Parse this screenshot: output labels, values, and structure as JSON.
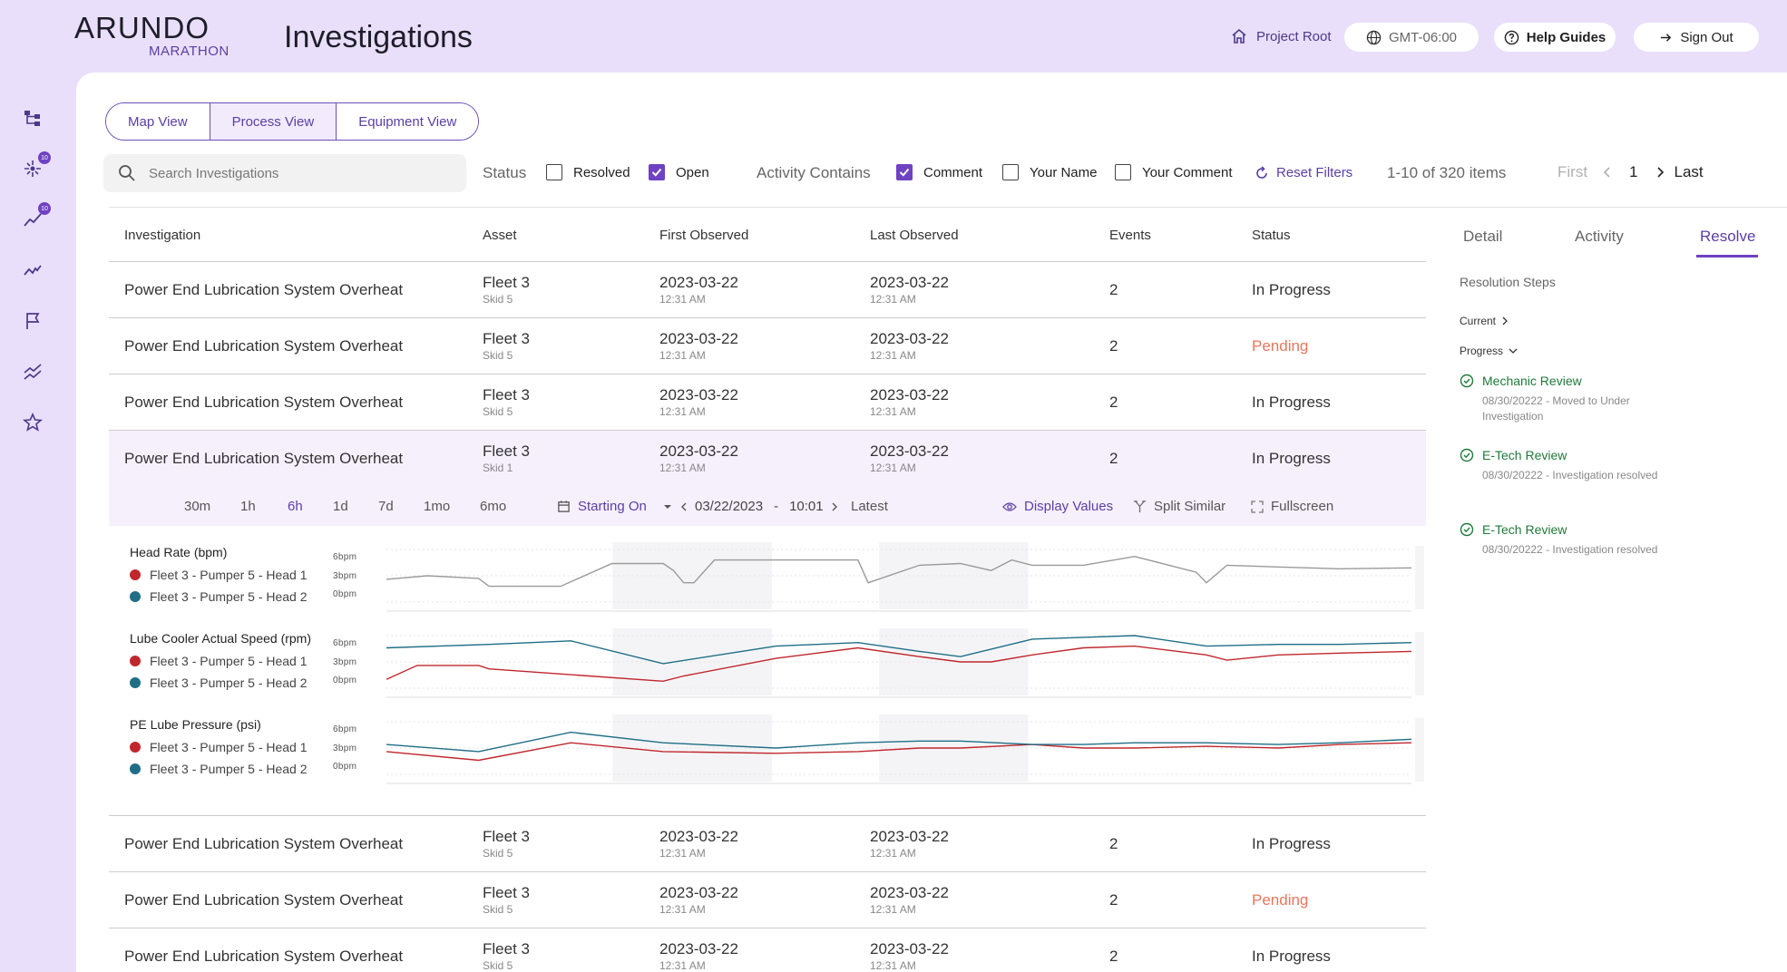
{
  "brand": {
    "name": "ARUNDO",
    "sub": "MARATHON"
  },
  "page_title": "Investigations",
  "header": {
    "project_root": "Project Root",
    "timezone": "GMT-06:00",
    "help": "Help Guides",
    "sign_out": "Sign Out"
  },
  "nav": [
    {
      "icon": "hierarchy-icon"
    },
    {
      "icon": "sparkle-icon",
      "badge": "10"
    },
    {
      "icon": "trend-up-icon",
      "badge": "10"
    },
    {
      "icon": "activity-icon"
    },
    {
      "icon": "flag-icon"
    },
    {
      "icon": "chart-lines-icon"
    },
    {
      "icon": "star-icon"
    }
  ],
  "views": [
    "Map View",
    "Process View",
    "Equipment View"
  ],
  "active_view": "Process View",
  "search": {
    "placeholder": "Search Investigations"
  },
  "filters": {
    "status_label": "Status",
    "resolved": "Resolved",
    "open": "Open",
    "activity_label": "Activity Contains",
    "comment": "Comment",
    "your_name": "Your Name",
    "your_comment": "Your Comment",
    "reset": "Reset Filters"
  },
  "pagination": {
    "count": "1-10 of 320 items",
    "first": "First",
    "page": "1",
    "last": "Last"
  },
  "columns": [
    "Investigation",
    "Asset",
    "First Observed",
    "Last Observed",
    "Events",
    "Status"
  ],
  "rows": [
    {
      "name": "Power End Lubrication System Overheat",
      "fleet": "Fleet 3",
      "skid": "Skid 5",
      "first_date": "2023-03-22",
      "first_time": "12:31 AM",
      "last_date": "2023-03-22",
      "last_time": "12:31 AM",
      "events": "2",
      "status": "In Progress"
    },
    {
      "name": "Power End Lubrication System Overheat",
      "fleet": "Fleet 3",
      "skid": "Skid 5",
      "first_date": "2023-03-22",
      "first_time": "12:31 AM",
      "last_date": "2023-03-22",
      "last_time": "12:31 AM",
      "events": "2",
      "status": "Pending"
    },
    {
      "name": "Power End Lubrication System Overheat",
      "fleet": "Fleet 3",
      "skid": "Skid 5",
      "first_date": "2023-03-22",
      "first_time": "12:31 AM",
      "last_date": "2023-03-22",
      "last_time": "12:31 AM",
      "events": "2",
      "status": "In Progress"
    },
    {
      "name": "Power End Lubrication System Overheat",
      "fleet": "Fleet 3",
      "skid": "Skid 1",
      "first_date": "2023-03-22",
      "first_time": "12:31 AM",
      "last_date": "2023-03-22",
      "last_time": "12:31 AM",
      "events": "2",
      "status": "In Progress"
    },
    {
      "name": "Power End Lubrication System Overheat",
      "fleet": "Fleet 3",
      "skid": "Skid 5",
      "first_date": "2023-03-22",
      "first_time": "12:31 AM",
      "last_date": "2023-03-22",
      "last_time": "12:31 AM",
      "events": "2",
      "status": "In Progress"
    },
    {
      "name": "Power End Lubrication System Overheat",
      "fleet": "Fleet 3",
      "skid": "Skid 5",
      "first_date": "2023-03-22",
      "first_time": "12:31 AM",
      "last_date": "2023-03-22",
      "last_time": "12:31 AM",
      "events": "2",
      "status": "Pending"
    },
    {
      "name": "Power End Lubrication System Overheat",
      "fleet": "Fleet 3",
      "skid": "Skid 5",
      "first_date": "2023-03-22",
      "first_time": "12:31 AM",
      "last_date": "2023-03-22",
      "last_time": "12:31 AM",
      "events": "2",
      "status": "In Progress"
    }
  ],
  "toolbar": {
    "ranges": [
      "30m",
      "1h",
      "6h",
      "1d",
      "7d",
      "1mo",
      "6mo"
    ],
    "active_range": "6h",
    "starting_on": "Starting On",
    "date": "03/22/2023",
    "sep": "-",
    "time": "10:01",
    "latest": "Latest",
    "display_values": "Display Values",
    "split_similar": "Split Similar",
    "fullscreen": "Fullscreen"
  },
  "status_colors": {
    "in_progress": "#333333",
    "pending": "#e8765d",
    "accent": "#6f42c1"
  },
  "series_colors": {
    "head1": "#c0272d",
    "head2": "#1f6e86"
  },
  "chart_data": [
    {
      "type": "line",
      "title": "Head Rate (bpm)",
      "y_ticks": [
        "6bpm",
        "3bpm",
        "0bpm"
      ],
      "ylim": [
        0,
        6
      ],
      "legend": [
        "Fleet 3 - Pumper 5 - Head 1",
        "Fleet 3 - Pumper 5 - Head 2"
      ],
      "series": [
        {
          "name": "",
          "x": [
            0,
            0.04,
            0.09,
            0.1,
            0.12,
            0.13,
            0.17,
            0.22,
            0.26,
            0.27,
            0.28,
            0.29,
            0.3,
            0.32,
            0.36,
            0.46,
            0.47,
            0.52,
            0.56,
            0.59,
            0.61,
            0.63,
            0.68,
            0.73,
            0.79,
            0.8,
            0.82,
            0.87,
            0.93,
            1
          ],
          "y": [
            2.6,
            3.0,
            2.7,
            1.8,
            1.8,
            1.8,
            1.8,
            4.4,
            4.4,
            4.4,
            3.6,
            2.2,
            2.2,
            4.8,
            4.8,
            4.8,
            2.2,
            4.2,
            4.4,
            3.6,
            4.8,
            4.2,
            4.2,
            5.2,
            3.4,
            2.2,
            4.2,
            4.0,
            3.8,
            3.9
          ]
        }
      ]
    },
    {
      "type": "line",
      "title": "Lube Cooler Actual Speed (rpm)",
      "y_ticks": [
        "6bpm",
        "3bpm",
        "0bpm"
      ],
      "ylim": [
        0,
        6
      ],
      "legend": [
        "Fleet 3 - Pumper 5 - Head 1",
        "Fleet 3 - Pumper 5 - Head 2"
      ],
      "series": [
        {
          "name": "Fleet 3 - Pumper 5 - Head 1",
          "x": [
            0,
            0.03,
            0.09,
            0.1,
            0.27,
            0.29,
            0.38,
            0.46,
            0.52,
            0.56,
            0.59,
            0.63,
            0.68,
            0.73,
            0.8,
            0.82,
            0.87,
            0.93,
            1
          ],
          "y": [
            1.0,
            2.6,
            2.6,
            2.2,
            0.8,
            1.4,
            3.4,
            4.6,
            3.6,
            3.0,
            3.0,
            3.8,
            4.6,
            4.8,
            3.8,
            3.2,
            3.8,
            4.0,
            4.2
          ]
        },
        {
          "name": "Fleet 3 - Pumper 5 - Head 2",
          "x": [
            0,
            0.1,
            0.18,
            0.27,
            0.38,
            0.46,
            0.52,
            0.56,
            0.63,
            0.68,
            0.73,
            0.8,
            0.87,
            0.93,
            1
          ],
          "y": [
            4.6,
            5.0,
            5.4,
            2.8,
            4.8,
            5.2,
            4.2,
            3.6,
            5.6,
            5.8,
            6.0,
            4.8,
            5.0,
            5.0,
            5.2
          ]
        }
      ]
    },
    {
      "type": "line",
      "title": "PE Lube Pressure (psi)",
      "y_ticks": [
        "6bpm",
        "3bpm",
        "0bpm"
      ],
      "ylim": [
        0,
        6
      ],
      "legend": [
        "Fleet 3 - Pumper 5 - Head 1",
        "Fleet 3 - Pumper 5 - Head 2"
      ],
      "series": [
        {
          "name": "Fleet 3 - Pumper 5 - Head 1",
          "x": [
            0,
            0.09,
            0.18,
            0.27,
            0.38,
            0.46,
            0.52,
            0.56,
            0.63,
            0.68,
            0.73,
            0.8,
            0.87,
            0.93,
            1
          ],
          "y": [
            2.6,
            1.6,
            3.6,
            2.6,
            2.4,
            2.6,
            3.0,
            3.0,
            3.4,
            3.0,
            3.0,
            3.2,
            3.0,
            3.4,
            3.6
          ]
        },
        {
          "name": "Fleet 3 - Pumper 5 - Head 2",
          "x": [
            0,
            0.09,
            0.18,
            0.27,
            0.38,
            0.46,
            0.52,
            0.56,
            0.63,
            0.68,
            0.73,
            0.8,
            0.87,
            0.93,
            1
          ],
          "y": [
            3.4,
            2.6,
            4.8,
            3.6,
            3.0,
            3.6,
            3.8,
            3.8,
            3.4,
            3.4,
            3.6,
            3.6,
            3.4,
            3.6,
            4.0
          ]
        }
      ]
    }
  ],
  "side_tabs": [
    "Detail",
    "Activity",
    "Resolve"
  ],
  "active_side_tab": "Resolve",
  "resolution": {
    "title": "Resolution Steps",
    "current": "Current",
    "progress": "Progress",
    "steps": [
      {
        "title": "Mechanic Review",
        "detail": "08/30/20222 - Moved to Under Investigation"
      },
      {
        "title": "E-Tech Review",
        "detail": "08/30/20222 - Investigation resolved"
      },
      {
        "title": "E-Tech Review",
        "detail": "08/30/20222 - Investigation resolved"
      }
    ]
  }
}
